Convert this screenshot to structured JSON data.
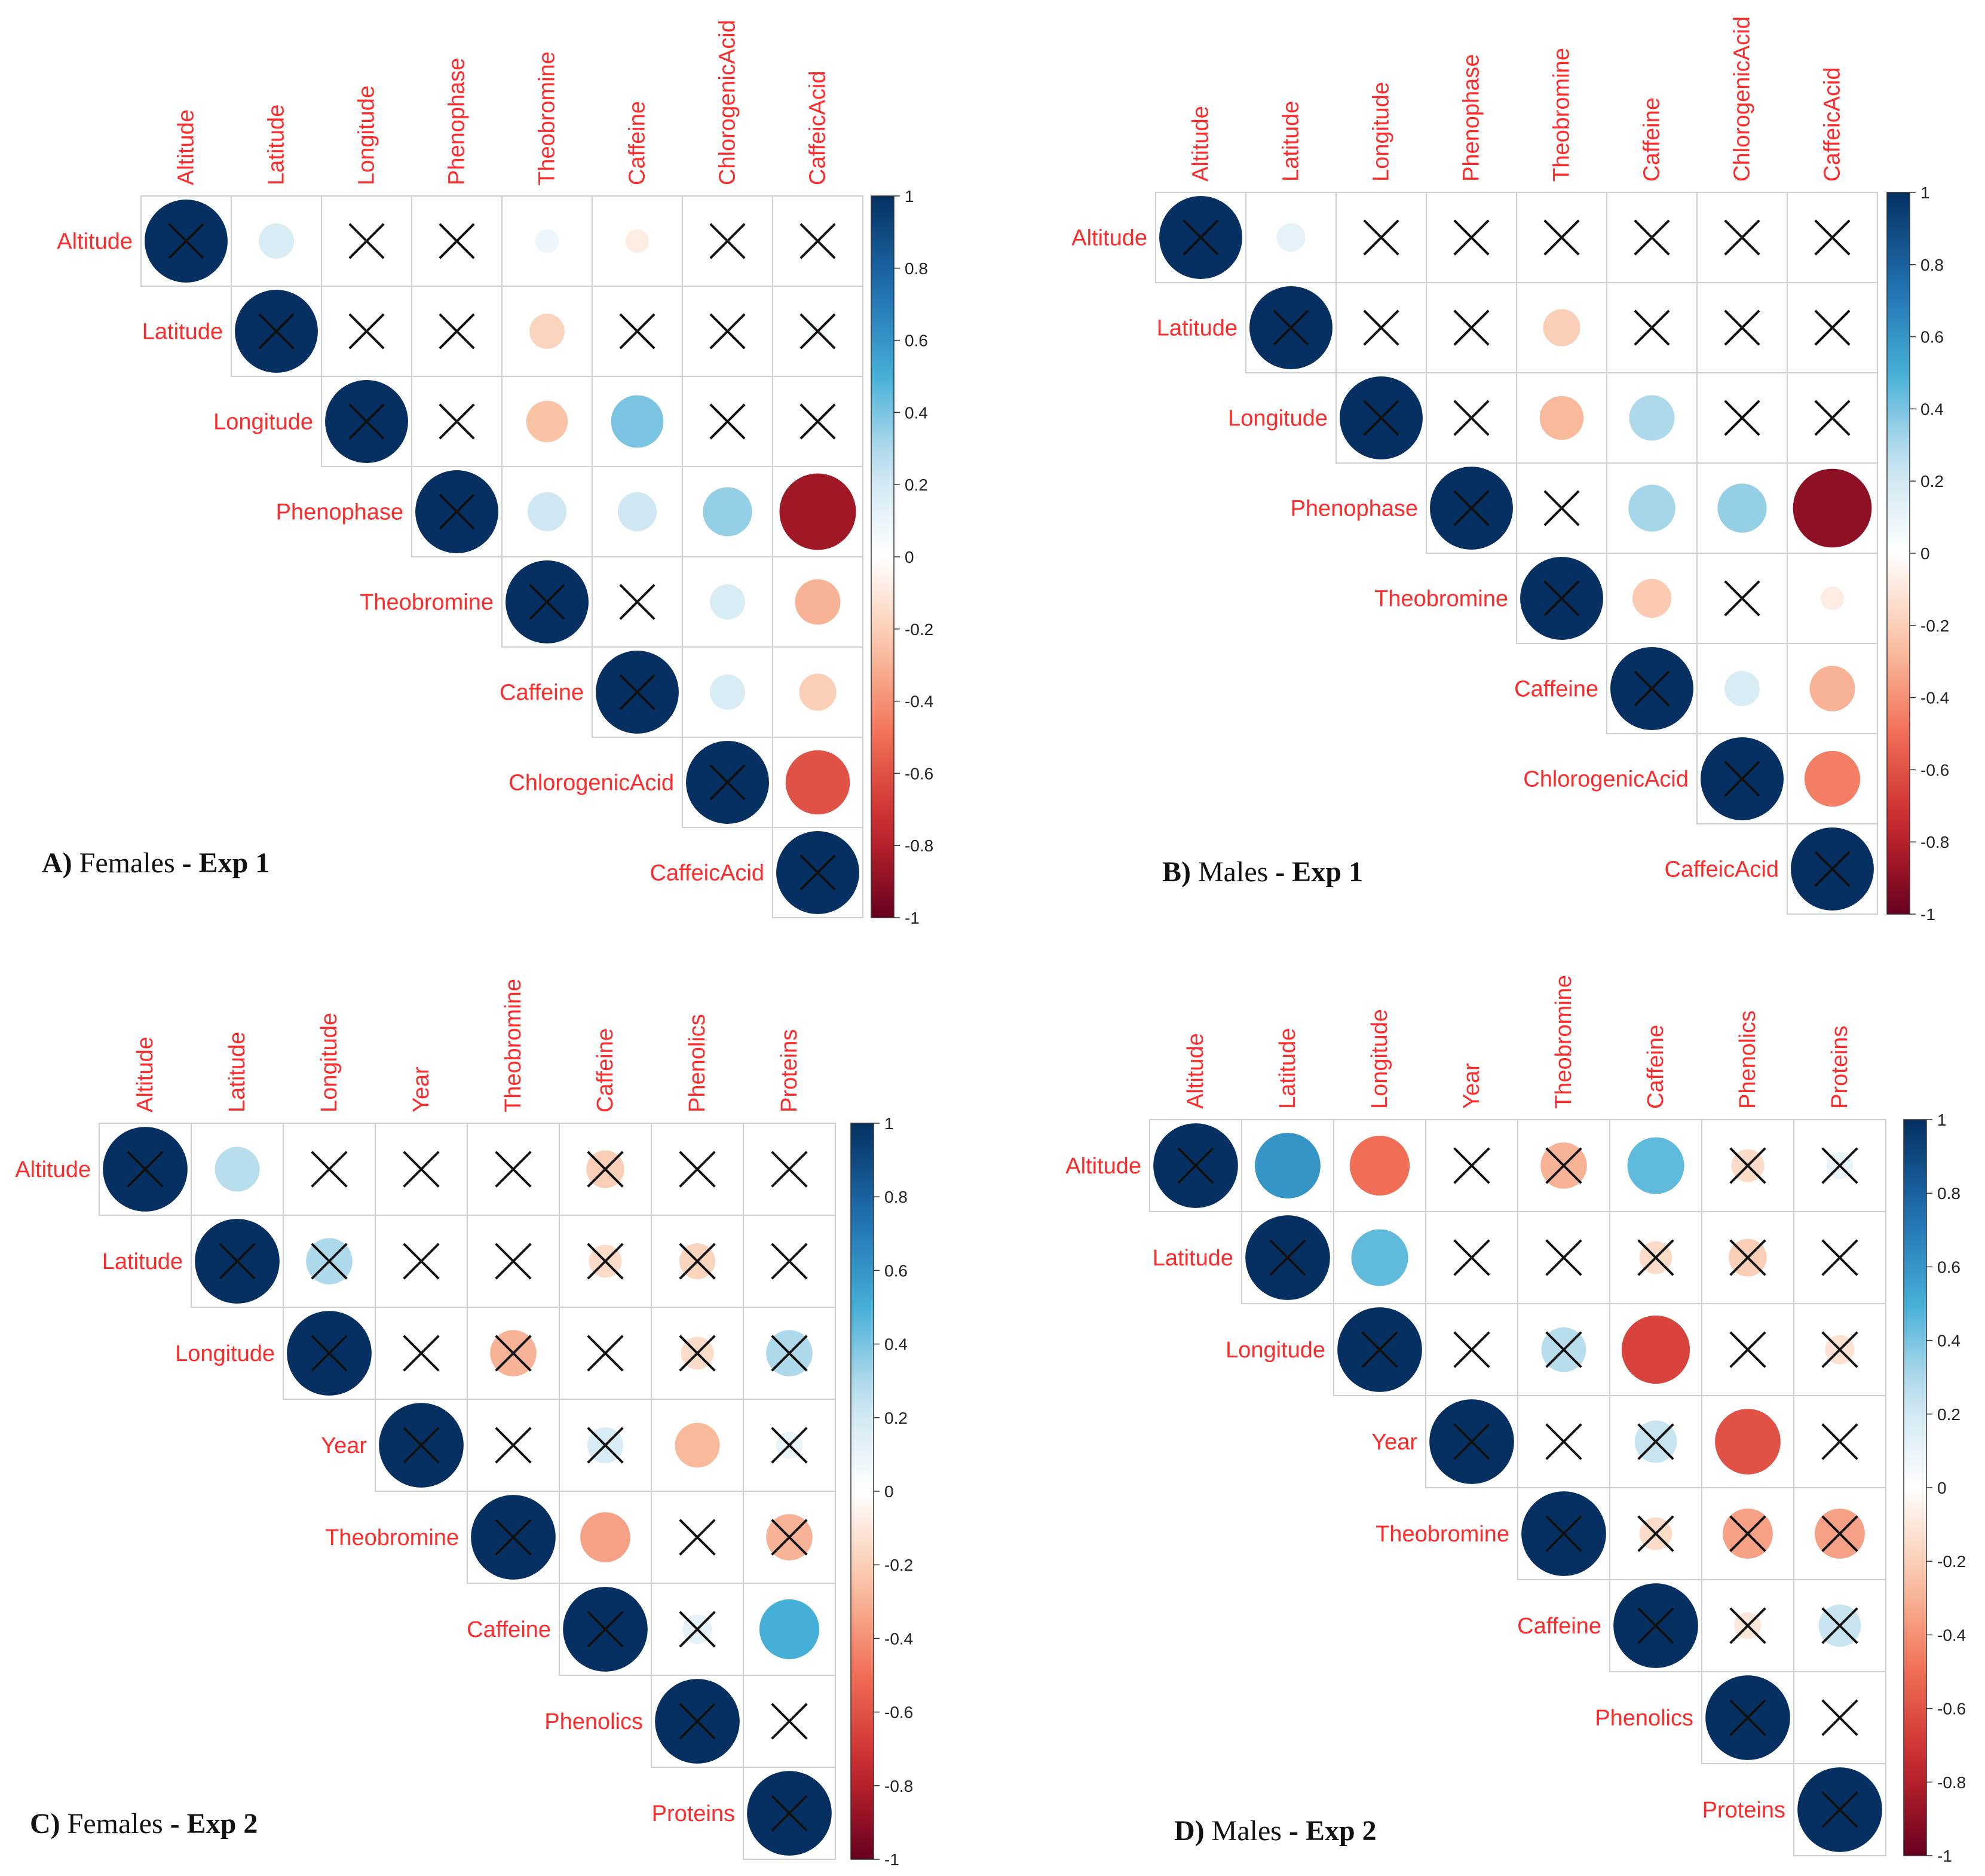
{
  "chart_data": [
    {
      "type": "heatmap",
      "style": "upper-triangle correlation circles",
      "caption": {
        "letter": "A)",
        "group": "Females",
        "sep": " - ",
        "exp": "Exp 1"
      },
      "variables": [
        "Altitude",
        "Latitude",
        "Longitude",
        "Phenophase",
        "Theobromine",
        "Caffeine",
        "ChlorogenicAcid",
        "CaffeicAcid"
      ],
      "r": [
        [
          1,
          0.18,
          0,
          0,
          0.08,
          -0.08,
          0,
          0
        ],
        [
          1,
          0,
          0,
          -0.18,
          0,
          0,
          0.05
        ],
        [
          1,
          0,
          -0.25,
          0.4,
          0,
          0
        ],
        [
          1,
          0.22,
          0.22,
          0.35,
          -0.85
        ],
        [
          1,
          0,
          0.18,
          -0.3
        ],
        [
          1,
          0.18,
          -0.2
        ],
        [
          1,
          -0.6
        ],
        [
          1
        ]
      ],
      "crossed": [
        [
          1,
          0,
          1,
          1,
          0,
          0,
          1,
          1
        ],
        [
          1,
          1,
          1,
          0,
          1,
          1,
          1
        ],
        [
          1,
          1,
          0,
          0,
          1,
          1
        ],
        [
          1,
          0,
          0,
          0,
          0
        ],
        [
          1,
          1,
          0,
          0
        ],
        [
          1,
          0,
          0
        ],
        [
          1,
          0
        ],
        [
          1
        ]
      ],
      "colorbar": {
        "min": -1,
        "max": 1,
        "ticks": [
          "1",
          "0.8",
          "0.6",
          "0.4",
          "0.2",
          "0",
          "-0.2",
          "-0.4",
          "-0.6",
          "-0.8",
          "-1"
        ]
      }
    },
    {
      "type": "heatmap",
      "style": "upper-triangle correlation circles",
      "caption": {
        "letter": "B)",
        "group": "Males",
        "sep": " - ",
        "exp": "Exp 1"
      },
      "variables": [
        "Altitude",
        "Latitude",
        "Longitude",
        "Phenophase",
        "Theobromine",
        "Caffeine",
        "ChlorogenicAcid",
        "CaffeicAcid"
      ],
      "r": [
        [
          1,
          0.12,
          0,
          0,
          0,
          0,
          0,
          0
        ],
        [
          1,
          0,
          0,
          -0.2,
          0,
          0,
          0
        ],
        [
          1,
          0,
          -0.28,
          0.3,
          0,
          0
        ],
        [
          1,
          0,
          0.32,
          0.35,
          -0.9
        ],
        [
          1,
          -0.22,
          0,
          -0.08
        ],
        [
          1,
          0.18,
          -0.3
        ],
        [
          1,
          -0.45
        ],
        [
          1
        ]
      ],
      "crossed": [
        [
          1,
          0,
          1,
          1,
          1,
          1,
          1,
          1
        ],
        [
          1,
          1,
          1,
          0,
          1,
          1,
          1
        ],
        [
          1,
          1,
          0,
          0,
          1,
          1
        ],
        [
          1,
          1,
          0,
          0,
          0
        ],
        [
          1,
          0,
          1,
          0
        ],
        [
          1,
          0,
          0
        ],
        [
          1,
          0
        ],
        [
          1
        ]
      ],
      "colorbar": {
        "min": -1,
        "max": 1,
        "ticks": [
          "1",
          "0.8",
          "0.6",
          "0.4",
          "0.2",
          "0",
          "-0.2",
          "-0.4",
          "-0.6",
          "-0.8",
          "-1"
        ]
      }
    },
    {
      "type": "heatmap",
      "style": "upper-triangle correlation circles",
      "caption": {
        "letter": "C)",
        "group": "Females",
        "sep": " - ",
        "exp": "Exp 2"
      },
      "variables": [
        "Altitude",
        "Latitude",
        "Longitude",
        "Year",
        "Theobromine",
        "Caffeine",
        "Phenolics",
        "Proteins"
      ],
      "r": [
        [
          1,
          0.28,
          0,
          0,
          0,
          -0.2,
          0,
          0
        ],
        [
          1,
          0.3,
          0,
          0,
          -0.15,
          -0.18,
          0
        ],
        [
          1,
          0,
          -0.3,
          0,
          -0.15,
          0.3
        ],
        [
          1,
          0,
          0.18,
          -0.28,
          0.1
        ],
        [
          1,
          -0.35,
          0,
          -0.3
        ],
        [
          1,
          0.12,
          0.5
        ],
        [
          1,
          0
        ],
        [
          1
        ]
      ],
      "crossed": [
        [
          1,
          0,
          1,
          1,
          1,
          1,
          1,
          1
        ],
        [
          1,
          1,
          1,
          1,
          1,
          1,
          1
        ],
        [
          1,
          1,
          1,
          1,
          1,
          1
        ],
        [
          1,
          1,
          1,
          0,
          1
        ],
        [
          1,
          0,
          1,
          1
        ],
        [
          1,
          1,
          0
        ],
        [
          1,
          1
        ],
        [
          1
        ]
      ],
      "colorbar": {
        "min": -1,
        "max": 1,
        "ticks": [
          "1",
          "0.8",
          "0.6",
          "0.4",
          "0.2",
          "0",
          "-0.2",
          "-0.4",
          "-0.6",
          "-0.8",
          "-1"
        ]
      }
    },
    {
      "type": "heatmap",
      "style": "upper-triangle correlation circles",
      "caption": {
        "letter": "D)",
        "group": "Males",
        "sep": " - ",
        "exp": "Exp 2"
      },
      "variables": [
        "Altitude",
        "Latitude",
        "Longitude",
        "Year",
        "Theobromine",
        "Caffeine",
        "Phenolics",
        "Proteins"
      ],
      "r": [
        [
          1,
          0.6,
          -0.5,
          0,
          -0.3,
          0.45,
          -0.15,
          0.1
        ],
        [
          1,
          0.45,
          0,
          0,
          -0.15,
          -0.2,
          0
        ],
        [
          1,
          0,
          0.28,
          -0.65,
          0,
          -0.12
        ],
        [
          1,
          0,
          0.25,
          -0.6,
          0
        ],
        [
          1,
          -0.15,
          -0.35,
          -0.35
        ],
        [
          1,
          -0.1,
          0.25
        ],
        [
          1,
          0
        ],
        [
          1
        ]
      ],
      "crossed": [
        [
          1,
          0,
          0,
          1,
          1,
          0,
          1,
          1
        ],
        [
          1,
          0,
          1,
          1,
          1,
          1,
          1
        ],
        [
          1,
          1,
          1,
          0,
          1,
          1
        ],
        [
          1,
          1,
          1,
          0,
          1
        ],
        [
          1,
          1,
          1,
          1
        ],
        [
          1,
          1,
          1
        ],
        [
          1,
          1
        ],
        [
          1
        ]
      ],
      "colorbar": {
        "min": -1,
        "max": 1,
        "ticks": [
          "1",
          "0.8",
          "0.6",
          "0.4",
          "0.2",
          "0",
          "-0.2",
          "-0.4",
          "-0.6",
          "-0.8",
          "-1"
        ]
      }
    }
  ]
}
